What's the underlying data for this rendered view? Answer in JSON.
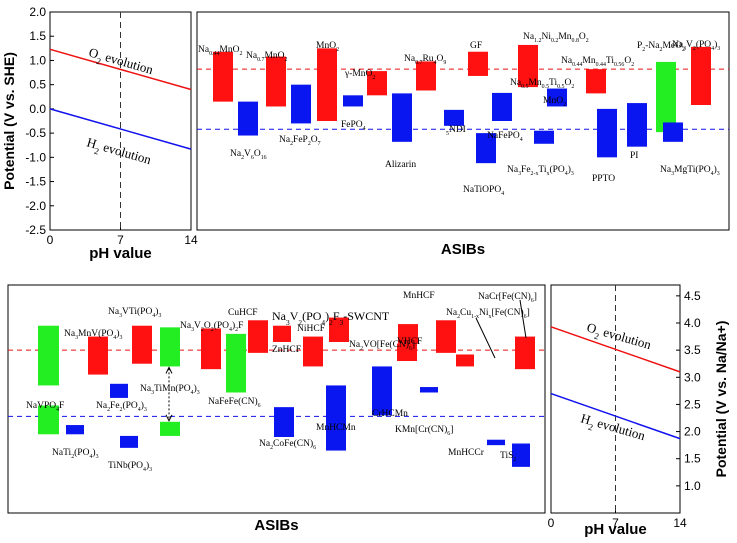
{
  "colors": {
    "red": "#ff1111",
    "blue": "#0a16f0",
    "green": "#22ee22",
    "red_line": "#ee1111",
    "blue_line": "#1111ee",
    "dashed_red": "#ee1111",
    "dashed_blue": "#1111ee"
  },
  "chart_data": [
    {
      "type": "line",
      "panel": "top-left",
      "ylabel": "Potential (V vs. SHE)",
      "xlabel": "pH value",
      "xlim": [
        0,
        14
      ],
      "ylim": [
        -2.5,
        2.0
      ],
      "x_ticks": [
        "0",
        "7",
        "14"
      ],
      "y_ticks": [
        "2.0",
        "1.5",
        "1.0",
        "0.5",
        "0.0",
        "-0.5",
        "-1.0",
        "-1.5",
        "-2.0",
        "-2.5"
      ],
      "vline_x": 7,
      "series": [
        {
          "name": "O2 evolution",
          "x": [
            0,
            14
          ],
          "y": [
            1.23,
            0.4
          ]
        },
        {
          "name": "H2 evolution",
          "x": [
            0,
            14
          ],
          "y": [
            0.0,
            -0.83
          ]
        }
      ],
      "annotations": [
        "O2 evolution",
        "H2 evolution"
      ]
    },
    {
      "type": "bar",
      "panel": "top-right",
      "xlabel": "ASIBs",
      "ylim": [
        -2.5,
        2.0
      ],
      "hlines": [
        0.82,
        -0.42
      ],
      "bars": [
        {
          "label": "Na0.44MnO2",
          "color": "red",
          "y": [
            0.15,
            1.18
          ]
        },
        {
          "label": "Na2V6O16",
          "color": "blue",
          "y": [
            -0.55,
            0.15
          ]
        },
        {
          "label": "Na0.7MnO2",
          "color": "red",
          "y": [
            0.05,
            1.08
          ]
        },
        {
          "label": "Na2FeP2O7",
          "color": "blue",
          "y": [
            -0.3,
            0.5
          ]
        },
        {
          "label": "MnO2",
          "color": "red",
          "y": [
            -0.25,
            1.25
          ]
        },
        {
          "label": "FePO4",
          "color": "blue",
          "y": [
            0.05,
            0.28
          ]
        },
        {
          "label": "γ-MnO2",
          "color": "red",
          "y": [
            0.28,
            0.78
          ]
        },
        {
          "label": "Alizarin",
          "color": "blue",
          "y": [
            -0.68,
            0.32
          ]
        },
        {
          "label": "Na0.7Ru4O9",
          "color": "red",
          "y": [
            0.38,
            0.98
          ]
        },
        {
          "label": "5NDI",
          "color": "blue",
          "y": [
            -0.35,
            -0.02
          ]
        },
        {
          "label": "GF",
          "color": "red",
          "y": [
            0.68,
            1.18
          ]
        },
        {
          "label": "NaTiOPO4",
          "color": "blue",
          "y": [
            -1.12,
            -0.5
          ]
        },
        {
          "label": "NaFePO4",
          "color": "blue",
          "y": [
            -0.25,
            0.33
          ]
        },
        {
          "label": "Na0.5Mn0.5Ti0.5O2",
          "color": "red",
          "y": [
            0.45,
            1.32
          ]
        },
        {
          "label": "Na3Fe2-xTix(PO4)3",
          "color": "blue",
          "y": [
            -0.72,
            -0.45
          ]
        },
        {
          "label": "Na1.2Ni0.2Mn0.8O2",
          "color": "red",
          "y": [
            0.5,
            0.88
          ]
        },
        {
          "label": "MnO2",
          "color": "blue",
          "y": [
            0.05,
            0.42
          ]
        },
        {
          "label": "Na0.44Mn0.44Ti0.56O2",
          "color": "red",
          "y": [
            0.32,
            0.82
          ]
        },
        {
          "label": "PPTO",
          "color": "blue",
          "y": [
            -1.0,
            0.0
          ]
        },
        {
          "label": "PI",
          "color": "blue",
          "y": [
            -0.78,
            0.12
          ]
        },
        {
          "label": "P2-Na2MeO2",
          "color": "green",
          "y": [
            -0.48,
            0.97
          ]
        },
        {
          "label": "Na3MgTi(PO4)3",
          "color": "blue",
          "y": [
            -0.68,
            -0.28
          ]
        },
        {
          "label": "Na3V2(PO4)3",
          "color": "red",
          "y": [
            0.08,
            1.28
          ]
        }
      ],
      "bar_labels": [
        "Na0.44MnO2",
        "Na2V6O16",
        "Na0.7MnO2",
        "Na2FeP2O7",
        "MnO2",
        "FePO4",
        "γ-MnO2",
        "Alizarin",
        "Na0.7Ru4O9",
        "5NDI",
        "GF",
        "NaTiOPO4",
        "NaFePO4",
        "Na1.2Ni0.2Mn0.8O2",
        "Na0.5Mn0.5Ti0.5O2",
        "MnO2",
        "Na3Fe2-xTix(PO4)3",
        "Na0.44Mn0.44Ti0.56O2",
        "PPTO",
        "PI",
        "P2-Na2MeO2",
        "Na3MgTi(PO4)3",
        "Na3V2(PO4)3"
      ]
    },
    {
      "type": "bar",
      "panel": "bottom-left",
      "xlabel": "ASIBs",
      "ylim": [
        0.5,
        4.7
      ],
      "hlines": [
        3.5,
        2.28
      ],
      "bars": [
        {
          "label": "NaVPO4F",
          "color": "green",
          "y": [
            2.85,
            3.95
          ]
        },
        {
          "label": "NaVPO4F (low)",
          "color": "green",
          "y": [
            1.95,
            2.48
          ]
        },
        {
          "label": "NaTi2(PO4)3",
          "color": "blue",
          "y": [
            1.95,
            2.12
          ]
        },
        {
          "label": "Na3MnV(PO4)3",
          "color": "red",
          "y": [
            3.05,
            3.75
          ]
        },
        {
          "label": "Na2Fe2(PO4)3",
          "color": "blue",
          "y": [
            2.62,
            2.88
          ]
        },
        {
          "label": "TiNb(PO4)3",
          "color": "blue",
          "y": [
            1.7,
            1.92
          ]
        },
        {
          "label": "Na3VTi(PO4)3",
          "color": "red",
          "y": [
            3.25,
            3.95
          ]
        },
        {
          "label": "Na3TiMn(PO4)3",
          "color": "green",
          "y": [
            3.2,
            3.92
          ]
        },
        {
          "label": "Na3TiMn(PO4)3 (low)",
          "color": "green",
          "y": [
            1.92,
            2.18
          ]
        },
        {
          "label": "Na3V2O2(PO4)2F",
          "color": "red",
          "y": [
            3.15,
            3.9
          ]
        },
        {
          "label": "NaFeFe(CN)6",
          "color": "green",
          "y": [
            2.72,
            3.8
          ]
        },
        {
          "label": "CuHCF",
          "color": "red",
          "y": [
            3.45,
            4.05
          ]
        },
        {
          "label": "Na2CoFe(CN)6",
          "color": "blue",
          "y": [
            1.9,
            2.45
          ]
        },
        {
          "label": "ZnHCF",
          "color": "red",
          "y": [
            3.65,
            3.95
          ]
        },
        {
          "label": "NiHCF",
          "color": "red",
          "y": [
            3.2,
            3.75
          ]
        },
        {
          "label": "Na3V2(PO4)2F3-SWCNT",
          "color": "red",
          "y": [
            3.65,
            4.1
          ]
        },
        {
          "label": "MnHCMn",
          "color": "blue",
          "y": [
            1.65,
            2.85
          ]
        },
        {
          "label": "CrHCMn",
          "color": "blue",
          "y": [
            2.3,
            3.2
          ]
        },
        {
          "label": "VHCF",
          "color": "red",
          "y": [
            3.3,
            3.62
          ]
        },
        {
          "label": "Na2VO[Fe(CN)6]",
          "color": "red",
          "y": [
            3.62,
            3.98
          ]
        },
        {
          "label": "KMn[Cr(CN)6]",
          "color": "blue",
          "y": [
            2.72,
            2.82
          ]
        },
        {
          "label": "MnHCF",
          "color": "red",
          "y": [
            3.45,
            4.05
          ]
        },
        {
          "label": "MnHCCr",
          "color": "blue",
          "y": [
            1.75,
            1.85
          ]
        },
        {
          "label": "Na2Cu1-xNix[Fe(CN)6]",
          "color": "red",
          "y": [
            3.2,
            3.42
          ]
        },
        {
          "label": "NaCr[Fe(CN)6]",
          "color": "red",
          "y": [
            3.15,
            3.75
          ]
        },
        {
          "label": "TiS2",
          "color": "blue",
          "y": [
            1.35,
            1.78
          ]
        }
      ],
      "bar_labels": [
        "NaVPO4F",
        "NaTi2(PO4)3",
        "Na3MnV(PO4)3",
        "Na2Fe2(PO4)3",
        "TiNb(PO4)3",
        "Na3VTi(PO4)3",
        "Na3TiMn(PO4)3",
        "Na3V2O2(PO4)2F",
        "NaFeFe(CN)6",
        "CuHCF",
        "ZnHCF",
        "Na2CoFe(CN)6",
        "NiHCF",
        "Na3V2(PO4)2F3-SWCNT",
        "MnHCMn",
        "CrHCMn",
        "Na2VO[Fe(CN)6]",
        "VHCF",
        "KMn[Cr(CN)6]",
        "MnHCF",
        "Na2Cu1-xNix[Fe(CN)6]",
        "MnHCCr",
        "NaCr[Fe(CN)6]",
        "TiS2"
      ]
    },
    {
      "type": "line",
      "panel": "bottom-right",
      "ylabel": "Potential (V vs. Na/Na+)",
      "xlabel": "pH value",
      "xlim": [
        0,
        14
      ],
      "ylim": [
        0.5,
        4.7
      ],
      "x_ticks": [
        "0",
        "7",
        "14"
      ],
      "y_ticks": [
        "4.5",
        "4.0",
        "3.5",
        "3.0",
        "2.5",
        "2.0",
        "1.5",
        "1.0"
      ],
      "vline_x": 7,
      "series": [
        {
          "name": "O2 evolution",
          "x": [
            0,
            14
          ],
          "y": [
            3.93,
            3.1
          ]
        },
        {
          "name": "H2 evolution",
          "x": [
            0,
            14
          ],
          "y": [
            2.7,
            1.87
          ]
        }
      ],
      "annotations": [
        "O2 evolution",
        "H2 evolution"
      ]
    }
  ]
}
